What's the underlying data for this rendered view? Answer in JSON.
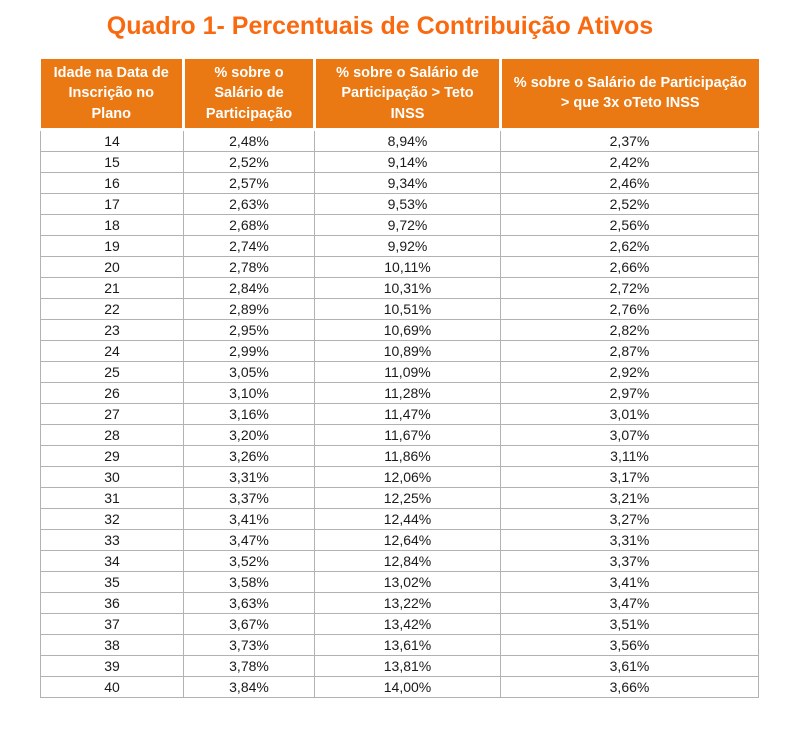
{
  "title": "Quadro 1- Percentuais de Contribuição Ativos",
  "colors": {
    "title_orange": "#f96a10",
    "header_orange": "#ea7913",
    "grid_gray": "#b2b2b2",
    "text": "#1a1a1a"
  },
  "table": {
    "headers": [
      "Idade na Data de Inscrição no Plano",
      "% sobre o Salário de Participação",
      "% sobre o Salário de Participação > Teto INSS",
      "% sobre o Salário de Participação > que 3x oTeto INSS"
    ],
    "rows": [
      [
        "14",
        "2,48%",
        "8,94%",
        "2,37%"
      ],
      [
        "15",
        "2,52%",
        "9,14%",
        "2,42%"
      ],
      [
        "16",
        "2,57%",
        "9,34%",
        "2,46%"
      ],
      [
        "17",
        "2,63%",
        "9,53%",
        "2,52%"
      ],
      [
        "18",
        "2,68%",
        "9,72%",
        "2,56%"
      ],
      [
        "19",
        "2,74%",
        "9,92%",
        "2,62%"
      ],
      [
        "20",
        "2,78%",
        "10,11%",
        "2,66%"
      ],
      [
        "21",
        "2,84%",
        "10,31%",
        "2,72%"
      ],
      [
        "22",
        "2,89%",
        "10,51%",
        "2,76%"
      ],
      [
        "23",
        "2,95%",
        "10,69%",
        "2,82%"
      ],
      [
        "24",
        "2,99%",
        "10,89%",
        "2,87%"
      ],
      [
        "25",
        "3,05%",
        "11,09%",
        "2,92%"
      ],
      [
        "26",
        "3,10%",
        "11,28%",
        "2,97%"
      ],
      [
        "27",
        "3,16%",
        "11,47%",
        "3,01%"
      ],
      [
        "28",
        "3,20%",
        "11,67%",
        "3,07%"
      ],
      [
        "29",
        "3,26%",
        "11,86%",
        "3,11%"
      ],
      [
        "30",
        "3,31%",
        "12,06%",
        "3,17%"
      ],
      [
        "31",
        "3,37%",
        "12,25%",
        "3,21%"
      ],
      [
        "32",
        "3,41%",
        "12,44%",
        "3,27%"
      ],
      [
        "33",
        "3,47%",
        "12,64%",
        "3,31%"
      ],
      [
        "34",
        "3,52%",
        "12,84%",
        "3,37%"
      ],
      [
        "35",
        "3,58%",
        "13,02%",
        "3,41%"
      ],
      [
        "36",
        "3,63%",
        "13,22%",
        "3,47%"
      ],
      [
        "37",
        "3,67%",
        "13,42%",
        "3,51%"
      ],
      [
        "38",
        "3,73%",
        "13,61%",
        "3,56%"
      ],
      [
        "39",
        "3,78%",
        "13,81%",
        "3,61%"
      ],
      [
        "40",
        "3,84%",
        "14,00%",
        "3,66%"
      ]
    ]
  }
}
